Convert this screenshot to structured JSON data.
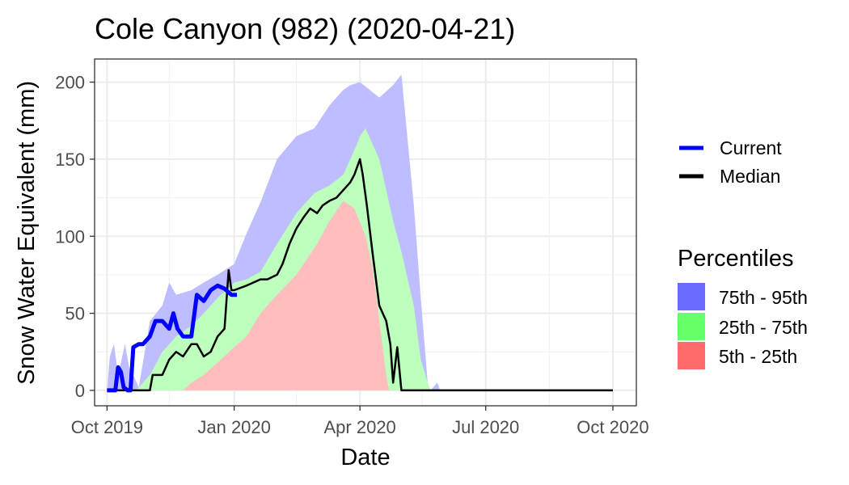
{
  "chart_data": {
    "type": "area",
    "title": "Cole Canyon (982) (2020-04-21)",
    "xlabel": "Date",
    "ylabel": "Snow Water Equivalent (mm)",
    "x_ticks": [
      "Oct 2019",
      "Jan 2020",
      "Apr 2020",
      "Jul 2020",
      "Oct 2020"
    ],
    "y_ticks": [
      "0",
      "50",
      "100",
      "150",
      "200"
    ],
    "xlim": [
      "2019-09-22",
      "2020-10-18"
    ],
    "ylim": [
      -10,
      215
    ],
    "grid": true,
    "legend_lines_title": "",
    "legend_lines": [
      {
        "label": "Current",
        "color": "#0000ff"
      },
      {
        "label": "Median",
        "color": "#000000"
      }
    ],
    "legend_bands_title": "Percentiles",
    "legend_bands": [
      {
        "label": "75th - 95th",
        "color": "#6b6bff"
      },
      {
        "label": "25th - 75th",
        "color": "#66ff66"
      },
      {
        "label": "5th - 25th",
        "color": "#ff6b6b"
      }
    ],
    "band_fill_colors": {
      "p75_p95": "#bdbdff",
      "p25_p75": "#bdffbd",
      "p5_p25": "#ffbdbd"
    },
    "bands": {
      "p95": {
        "x": [
          "2019-10-01",
          "2019-10-03",
          "2019-10-06",
          "2019-10-09",
          "2019-10-14",
          "2019-10-17",
          "2019-10-21",
          "2019-10-24",
          "2019-11-01",
          "2019-11-10",
          "2019-11-15",
          "2019-11-20",
          "2019-12-01",
          "2019-12-10",
          "2019-12-20",
          "2020-01-01",
          "2020-01-10",
          "2020-01-20",
          "2020-02-01",
          "2020-02-15",
          "2020-02-28",
          "2020-03-10",
          "2020-03-20",
          "2020-03-25",
          "2020-04-01",
          "2020-04-15",
          "2020-04-25",
          "2020-05-01",
          "2020-05-10",
          "2020-05-15",
          "2020-05-20",
          "2020-05-22",
          "2020-05-27",
          "2020-05-29"
        ],
        "y": [
          0,
          22,
          30,
          10,
          30,
          15,
          8,
          2,
          45,
          55,
          70,
          62,
          65,
          70,
          75,
          82,
          102,
          122,
          150,
          165,
          170,
          185,
          195,
          198,
          200,
          190,
          198,
          205,
          120,
          60,
          5,
          0,
          5,
          0
        ]
      },
      "p75": {
        "x": [
          "2019-10-01",
          "2019-10-22",
          "2019-11-01",
          "2019-11-10",
          "2019-11-20",
          "2019-12-01",
          "2019-12-10",
          "2019-12-20",
          "2020-01-01",
          "2020-01-10",
          "2020-01-20",
          "2020-02-01",
          "2020-02-15",
          "2020-02-28",
          "2020-03-10",
          "2020-03-20",
          "2020-03-30",
          "2020-04-01",
          "2020-04-05",
          "2020-04-15",
          "2020-04-25",
          "2020-05-01",
          "2020-05-10",
          "2020-05-15",
          "2020-05-20",
          "2020-05-22"
        ],
        "y": [
          0,
          0,
          10,
          25,
          35,
          42,
          50,
          60,
          70,
          72,
          77,
          95,
          115,
          128,
          133,
          140,
          160,
          165,
          170,
          150,
          110,
          90,
          55,
          20,
          5,
          0
        ]
      },
      "p25": {
        "x": [
          "2019-11-25",
          "2019-12-01",
          "2019-12-10",
          "2019-12-20",
          "2020-01-01",
          "2020-01-10",
          "2020-01-20",
          "2020-02-01",
          "2020-02-15",
          "2020-03-01",
          "2020-03-10",
          "2020-03-20",
          "2020-03-28",
          "2020-04-05",
          "2020-04-10",
          "2020-04-15",
          "2020-04-20",
          "2020-04-22"
        ],
        "y": [
          0,
          5,
          10,
          18,
          28,
          35,
          50,
          62,
          75,
          95,
          110,
          123,
          118,
          100,
          80,
          45,
          10,
          0
        ]
      }
    },
    "median": {
      "x": [
        "2019-10-01",
        "2019-11-01",
        "2019-11-03",
        "2019-11-10",
        "2019-11-15",
        "2019-11-20",
        "2019-11-25",
        "2019-12-01",
        "2019-12-05",
        "2019-12-10",
        "2019-12-15",
        "2019-12-20",
        "2019-12-25",
        "2019-12-28",
        "2019-12-30",
        "2020-01-01",
        "2020-01-10",
        "2020-01-20",
        "2020-01-25",
        "2020-02-01",
        "2020-02-05",
        "2020-02-10",
        "2020-02-15",
        "2020-02-20",
        "2020-02-25",
        "2020-03-01",
        "2020-03-05",
        "2020-03-10",
        "2020-03-15",
        "2020-03-20",
        "2020-03-25",
        "2020-03-28",
        "2020-04-01",
        "2020-04-03",
        "2020-04-06",
        "2020-04-10",
        "2020-04-15",
        "2020-04-20",
        "2020-04-23",
        "2020-04-25",
        "2020-04-28",
        "2020-05-01",
        "2020-05-03",
        "2020-05-05",
        "2020-05-08",
        "2020-05-10"
      ],
      "y": [
        0,
        0,
        10,
        10,
        20,
        25,
        22,
        30,
        30,
        22,
        25,
        35,
        40,
        78,
        65,
        65,
        68,
        72,
        72,
        75,
        82,
        95,
        105,
        112,
        118,
        115,
        120,
        123,
        125,
        130,
        135,
        140,
        150,
        140,
        120,
        90,
        55,
        45,
        30,
        5,
        28,
        0,
        0,
        0,
        0,
        0
      ]
    },
    "current": {
      "x": [
        "2019-10-01",
        "2019-10-07",
        "2019-10-09",
        "2019-10-11",
        "2019-10-13",
        "2019-10-16",
        "2019-10-18",
        "2019-10-20",
        "2019-10-24",
        "2019-10-27",
        "2019-11-01",
        "2019-11-05",
        "2019-11-10",
        "2019-11-15",
        "2019-11-18",
        "2019-11-21",
        "2019-11-25",
        "2019-12-01",
        "2019-12-05",
        "2019-12-10",
        "2019-12-15",
        "2019-12-20",
        "2019-12-25",
        "2019-12-30",
        "2020-01-03"
      ],
      "y": [
        0,
        0,
        15,
        12,
        2,
        0,
        0,
        28,
        30,
        30,
        35,
        45,
        45,
        40,
        50,
        40,
        35,
        35,
        62,
        58,
        65,
        68,
        66,
        62,
        62
      ]
    }
  }
}
